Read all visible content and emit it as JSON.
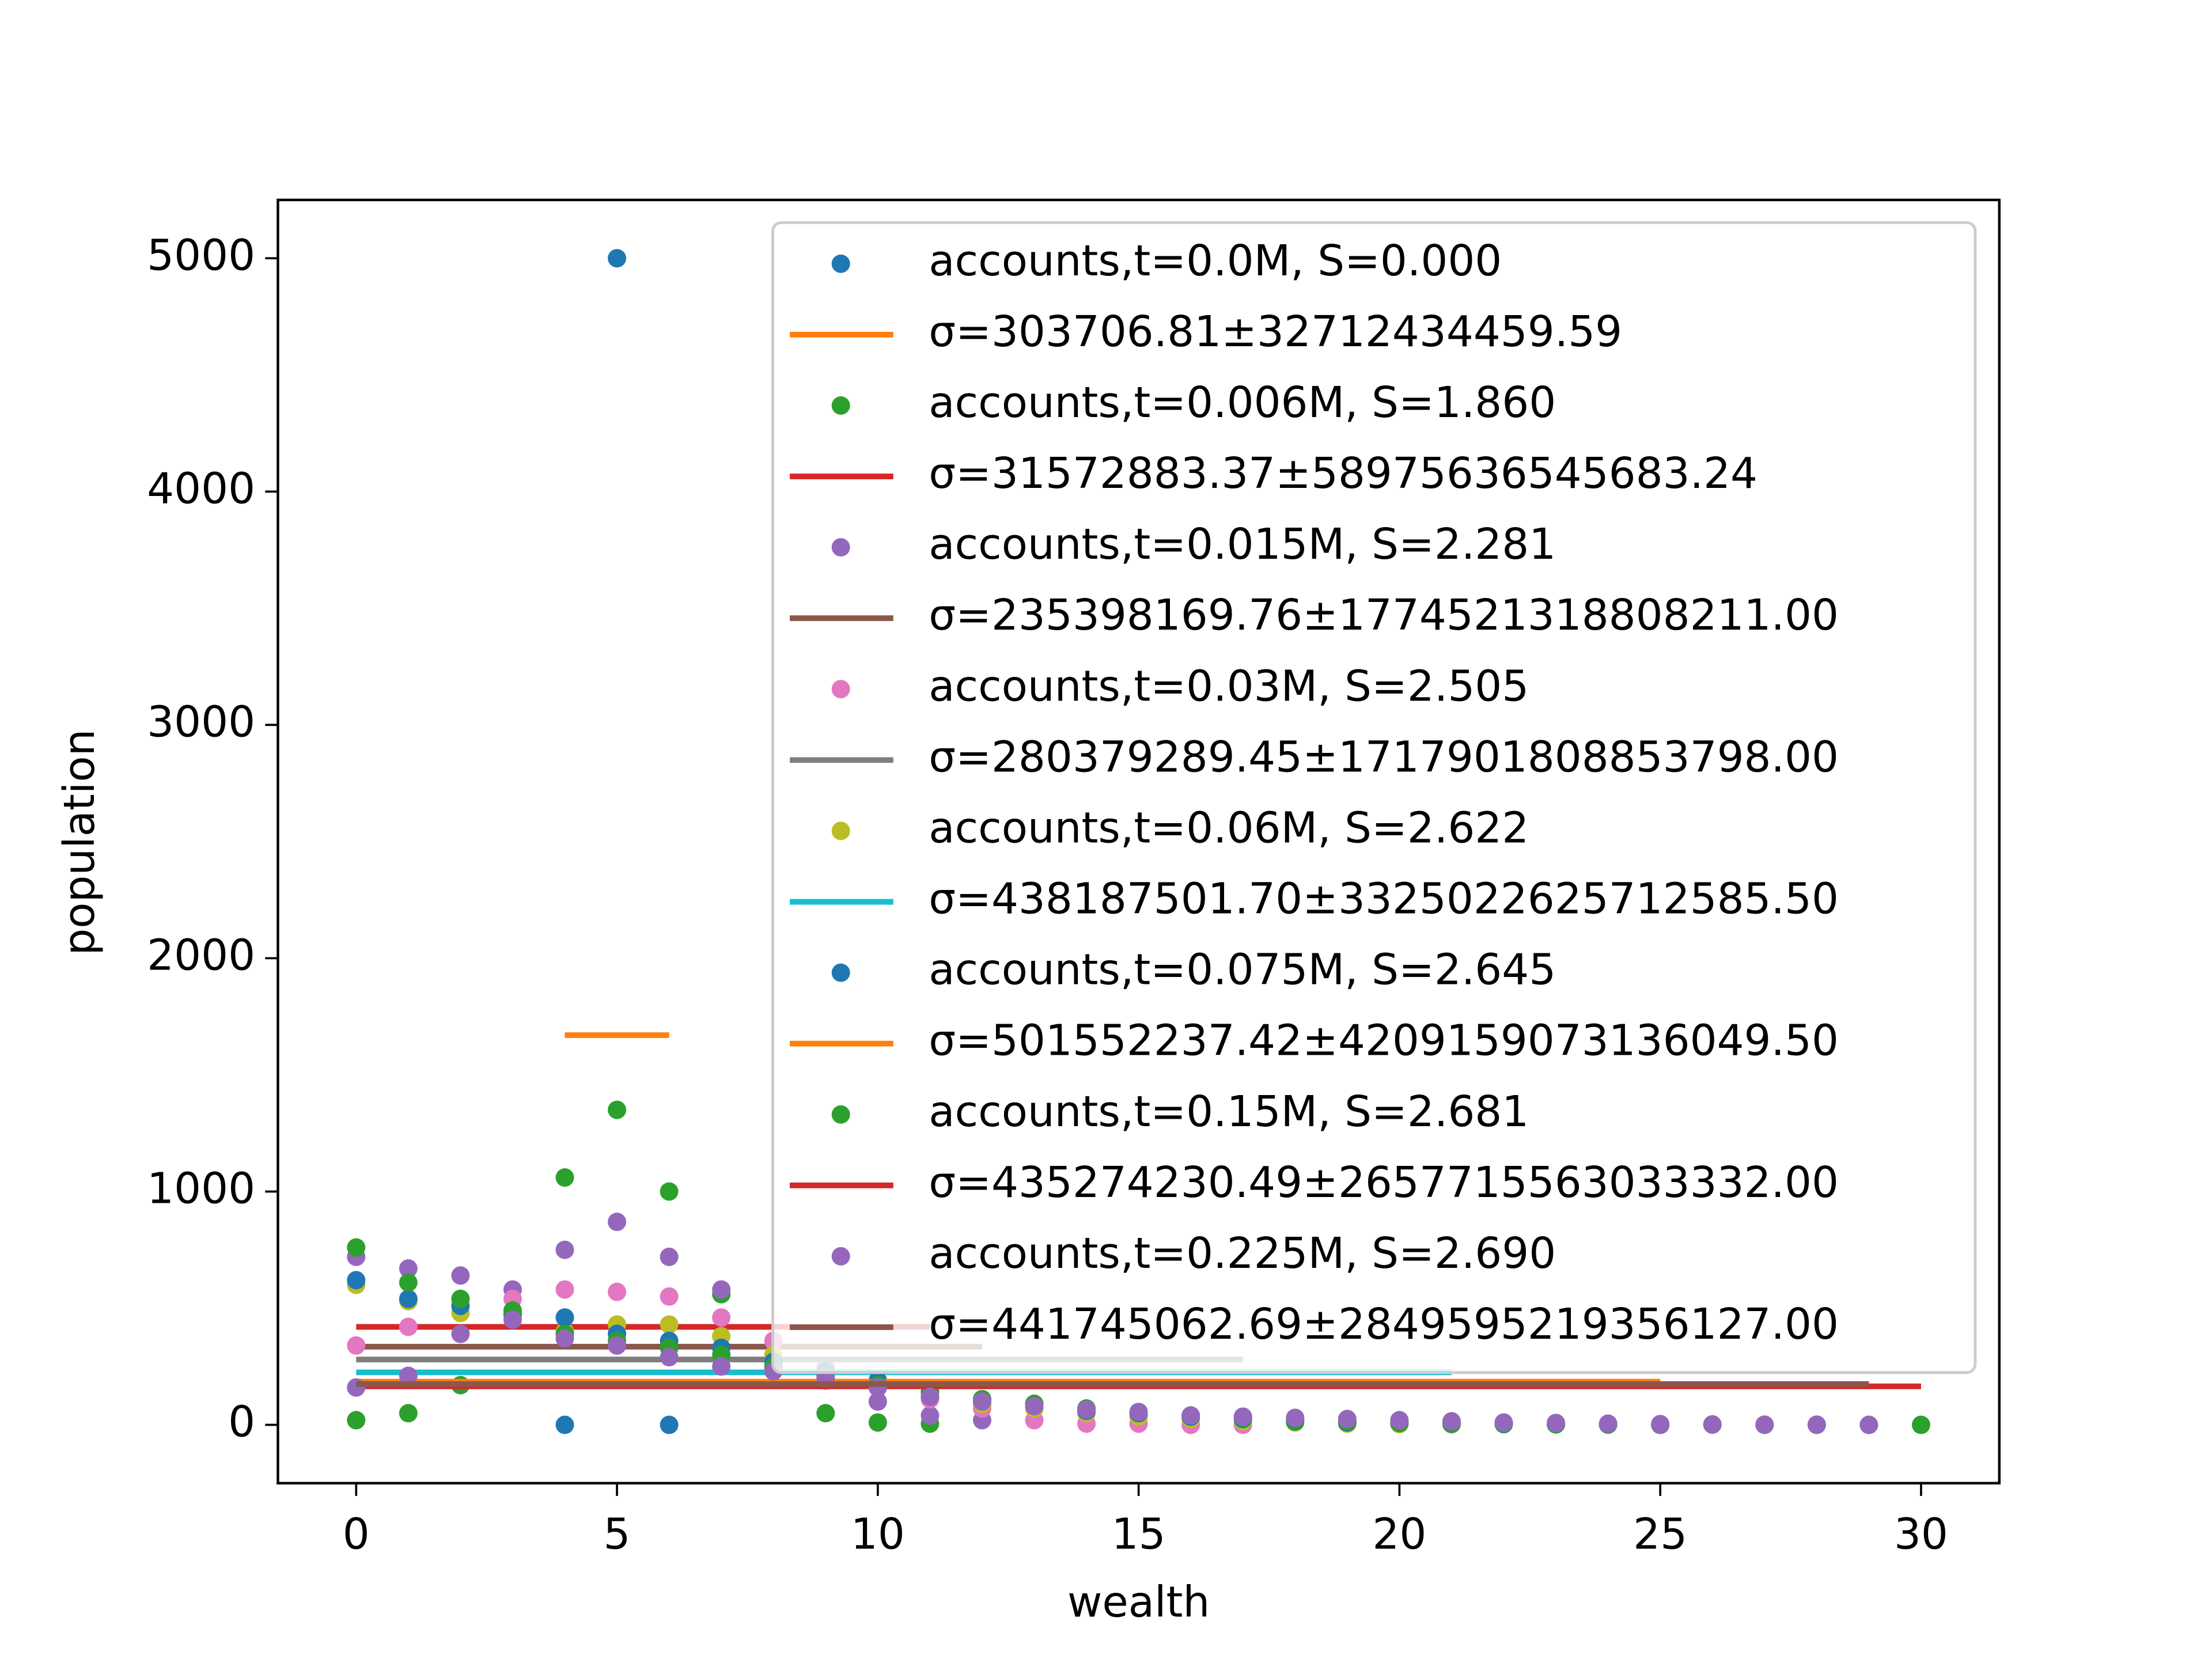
{
  "chart_data": {
    "type": "scatter",
    "x_label": "wealth",
    "y_label": "population",
    "xlim": [
      -1.5,
      31.5
    ],
    "ylim": [
      -250,
      5250
    ],
    "xticks": [
      0,
      5,
      10,
      15,
      20,
      25,
      30
    ],
    "yticks": [
      0,
      1000,
      2000,
      3000,
      4000,
      5000
    ],
    "legend": "upper right",
    "series": [
      {
        "name": "accounts,t=0.0M, S=0.000",
        "kind": "points",
        "color": "#1f77b4",
        "x": [
          4,
          5,
          6
        ],
        "values": [
          0,
          5000,
          0
        ]
      },
      {
        "name": "σ=303706.81±32712434459.59",
        "kind": "line",
        "color": "#ff7f0e",
        "x": [
          4,
          6
        ],
        "values": [
          1670,
          1670
        ]
      },
      {
        "name": "accounts,t=0.006M, S=1.860",
        "kind": "points",
        "color": "#2ca02c",
        "x": [
          0,
          1,
          2,
          3,
          4,
          5,
          6,
          7,
          8,
          9,
          10,
          11
        ],
        "values": [
          20,
          50,
          170,
          480,
          1060,
          1350,
          1000,
          560,
          280,
          50,
          10,
          5
        ]
      },
      {
        "name": "σ=31572883.37±58975636545683.24",
        "kind": "line",
        "color": "#d62728",
        "x": [
          0,
          11
        ],
        "values": [
          420,
          420
        ]
      },
      {
        "name": "accounts,t=0.015M, S=2.281",
        "kind": "points",
        "color": "#9467bd",
        "x": [
          0,
          1,
          2,
          3,
          4,
          5,
          6,
          7,
          8,
          9,
          10,
          11,
          12
        ],
        "values": [
          720,
          670,
          640,
          580,
          750,
          870,
          720,
          580,
          240,
          190,
          100,
          40,
          20
        ]
      },
      {
        "name": "σ=235398169.76±177452131880821​1.00",
        "kind": "line",
        "color": "#8c564b",
        "x": [
          0,
          12
        ],
        "values": [
          335,
          335
        ]
      },
      {
        "name": "accounts,t=0.03M, S=2.505",
        "kind": "points",
        "color": "#e377c2",
        "x": [
          0,
          1,
          2,
          3,
          4,
          5,
          6,
          7,
          8,
          9,
          10,
          11,
          12,
          13,
          14,
          15,
          16,
          17
        ],
        "values": [
          340,
          420,
          480,
          540,
          580,
          570,
          550,
          460,
          360,
          250,
          160,
          110,
          70,
          20,
          5,
          5,
          0,
          0
        ]
      },
      {
        "name": "σ=280379289.45±1717901808853798.00",
        "kind": "line",
        "color": "#7f7f7f",
        "x": [
          0,
          17
        ],
        "values": [
          280,
          280
        ]
      },
      {
        "name": "accounts,t=0.06M, S=2.622",
        "kind": "points",
        "color": "#bcbd22",
        "x": [
          0,
          1,
          2,
          3,
          4,
          5,
          6,
          7,
          8,
          9,
          10,
          11,
          12,
          13,
          14,
          15,
          16,
          17,
          18,
          19,
          20,
          21
        ],
        "values": [
          600,
          530,
          480,
          480,
          400,
          430,
          430,
          380,
          300,
          220,
          170,
          120,
          90,
          70,
          50,
          35,
          25,
          15,
          10,
          5,
          3,
          2
        ]
      },
      {
        "name": "σ=438187501.70±3325022625712585.50",
        "kind": "line",
        "color": "#17becf",
        "x": [
          0,
          21
        ],
        "values": [
          225,
          225
        ]
      },
      {
        "name": "accounts,t=0.075M, S=2.645",
        "kind": "points",
        "color": "#1f77b4",
        "x": [
          0,
          1,
          2,
          3,
          4,
          5,
          6,
          7,
          8,
          9,
          10,
          11,
          12,
          13,
          14,
          15,
          16,
          17,
          18,
          19,
          20,
          21,
          22,
          23,
          24,
          25
        ],
        "values": [
          620,
          540,
          510,
          470,
          460,
          390,
          360,
          330,
          270,
          230,
          190,
          140,
          110,
          90,
          60,
          50,
          35,
          25,
          15,
          10,
          8,
          5,
          3,
          2,
          1,
          0
        ]
      },
      {
        "name": "σ=501552237.42±4209159073136049.50",
        "kind": "line",
        "color": "#ff7f0e",
        "x": [
          0,
          25
        ],
        "values": [
          185,
          185
        ]
      },
      {
        "name": "accounts,t=0.15M, S=2.681",
        "kind": "points",
        "color": "#2ca02c",
        "x": [
          0,
          1,
          2,
          3,
          4,
          5,
          6,
          7,
          8,
          9,
          10,
          11,
          12,
          13,
          14,
          15,
          16,
          17,
          18,
          19,
          20,
          21,
          22,
          23,
          24,
          25,
          26,
          27,
          28,
          29,
          30
        ],
        "values": [
          760,
          610,
          540,
          490,
          390,
          360,
          330,
          300,
          250,
          210,
          170,
          140,
          110,
          90,
          70,
          55,
          40,
          30,
          20,
          15,
          10,
          8,
          5,
          3,
          2,
          1,
          1,
          0,
          0,
          0,
          0
        ]
      },
      {
        "name": "σ=435274230.49±2657715563033332.00",
        "kind": "line",
        "color": "#d62728",
        "x": [
          0,
          30
        ],
        "values": [
          165,
          165
        ]
      },
      {
        "name": "accounts,t=0.225M, S=2.690",
        "kind": "points",
        "color": "#9467bd",
        "x": [
          0,
          1,
          2,
          3,
          4,
          5,
          6,
          7,
          8,
          9,
          10,
          11,
          12,
          13,
          14,
          15,
          16,
          17,
          18,
          19,
          20,
          21,
          22,
          23,
          24,
          25,
          26,
          27,
          28,
          29
        ],
        "values": [
          160,
          210,
          390,
          450,
          370,
          340,
          290,
          250,
          230,
          200,
          160,
          120,
          100,
          80,
          65,
          55,
          40,
          35,
          30,
          25,
          20,
          15,
          10,
          8,
          5,
          3,
          2,
          1,
          1,
          0
        ]
      },
      {
        "name": "σ=441745062.69±2849595219356127.00",
        "kind": "line",
        "color": "#8c564b",
        "x": [
          0,
          29
        ],
        "values": [
          175,
          175
        ]
      }
    ]
  }
}
